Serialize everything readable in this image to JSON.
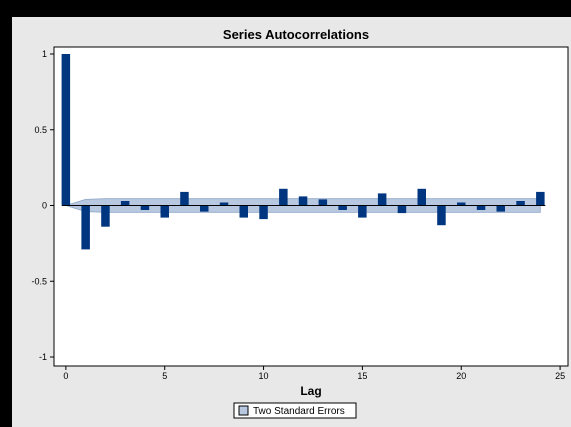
{
  "chart_data": {
    "type": "bar",
    "title": "Series Autocorrelations",
    "xlabel": "Lag",
    "ylabel": "",
    "xlim": [
      -0.6,
      25.4
    ],
    "ylim": [
      -1,
      1
    ],
    "xticks": [
      0,
      5,
      10,
      15,
      20,
      25
    ],
    "yticks": [
      -1,
      -0.5,
      0,
      0.5,
      1
    ],
    "xtick_labels": [
      "0",
      "5",
      "10",
      "15",
      "20",
      "25"
    ],
    "ytick_labels": [
      "-1",
      "-0.5",
      "0",
      "0.5",
      "1"
    ],
    "grid": false,
    "x": [
      0,
      1,
      2,
      3,
      4,
      5,
      6,
      7,
      8,
      9,
      10,
      11,
      12,
      13,
      14,
      15,
      16,
      17,
      18,
      19,
      20,
      21,
      22,
      23,
      24
    ],
    "values": [
      1.0,
      -0.29,
      -0.14,
      0.03,
      -0.03,
      -0.08,
      0.09,
      -0.04,
      0.02,
      -0.08,
      -0.09,
      0.11,
      0.06,
      0.04,
      -0.03,
      -0.08,
      0.08,
      -0.05,
      0.11,
      -0.13,
      0.02,
      -0.03,
      -0.04,
      0.03,
      0.09
    ],
    "band_upper": [
      0.0,
      0.04,
      0.045,
      0.045,
      0.045,
      0.045,
      0.045,
      0.045,
      0.045,
      0.045,
      0.045,
      0.045,
      0.045,
      0.045,
      0.045,
      0.045,
      0.045,
      0.045,
      0.045,
      0.045,
      0.045,
      0.045,
      0.045,
      0.045,
      0.045
    ],
    "band_lower": [
      0.0,
      -0.04,
      -0.045,
      -0.045,
      -0.045,
      -0.045,
      -0.045,
      -0.045,
      -0.045,
      -0.045,
      -0.045,
      -0.045,
      -0.045,
      -0.045,
      -0.045,
      -0.045,
      -0.045,
      -0.045,
      -0.045,
      -0.045,
      -0.045,
      -0.045,
      -0.045,
      -0.045,
      -0.045
    ],
    "legend": {
      "placement": "bottom-center",
      "entries": [
        "Two Standard Errors"
      ]
    },
    "colors": {
      "bar": "#003580",
      "band": "#b8c8e0",
      "band_edge": "#8ea6c8",
      "frame": "#e8e8e8",
      "plot": "#ffffff",
      "outer": "#000000"
    }
  }
}
